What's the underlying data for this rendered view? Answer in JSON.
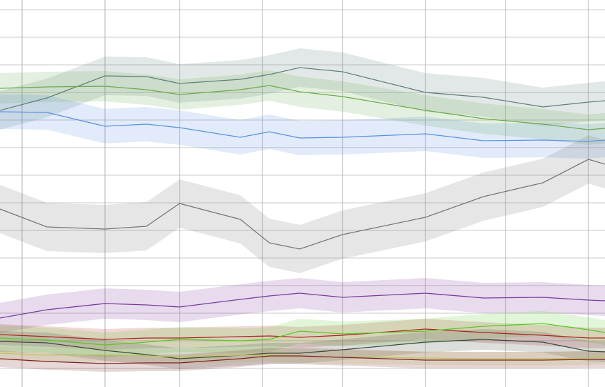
{
  "chart_data": {
    "type": "line",
    "x": [
      0,
      68,
      152,
      212,
      260,
      348,
      390,
      434,
      496,
      616,
      700,
      786,
      852,
      876
    ],
    "xlim": [
      0,
      876
    ],
    "ylim": [
      561,
      0
    ],
    "xticks": [
      32,
      152,
      260,
      380,
      496,
      616,
      732,
      852
    ],
    "yticks": [
      14,
      54,
      94,
      134,
      174,
      214,
      254,
      294,
      334,
      374,
      414,
      454,
      494,
      534
    ],
    "grid": true,
    "series": [
      {
        "color": "#5f7f7a",
        "band": 28,
        "values": [
          160,
          142,
          110,
          111,
          121,
          115,
          108,
          98,
          104,
          134,
          141,
          155,
          148,
          146
        ]
      },
      {
        "color": "#6aaa4f",
        "band": 22,
        "values": [
          128,
          126,
          125,
          130,
          137,
          130,
          124,
          133,
          140,
          160,
          172,
          180,
          188,
          186
        ]
      },
      {
        "color": "#5b8fe0",
        "band": 25,
        "values": [
          162,
          163,
          183,
          180,
          185,
          199,
          191,
          200,
          199,
          194,
          204,
          203,
          205,
          203
        ]
      },
      {
        "color": "#777777",
        "band": 35,
        "values": [
          303,
          329,
          332,
          328,
          295,
          318,
          352,
          361,
          340,
          315,
          285,
          265,
          231,
          238
        ]
      },
      {
        "color": "#7a3a9a",
        "band": 22,
        "values": [
          461,
          449,
          440,
          442,
          445,
          434,
          429,
          425,
          431,
          425,
          432,
          431,
          435,
          436
        ]
      },
      {
        "color": "#b22020",
        "band": 15,
        "values": [
          485,
          488,
          492,
          490,
          490,
          488,
          487,
          489,
          486,
          477,
          482,
          486,
          490,
          490
        ]
      },
      {
        "color": "#58c828",
        "band": 18,
        "values": [
          490,
          493,
          500,
          496,
          492,
          494,
          492,
          480,
          484,
          480,
          473,
          469,
          478,
          482
        ]
      },
      {
        "color": "#3c4a3c",
        "band": 15,
        "values": [
          495,
          497,
          508,
          514,
          520,
          515,
          512,
          512,
          507,
          496,
          492,
          496,
          509,
          510
        ]
      },
      {
        "color": "#b8c85a",
        "band": 10,
        "values": [
          512,
          515,
          514,
          516,
          517,
          515,
          514,
          516,
          518,
          519,
          520,
          520,
          519,
          518
        ]
      },
      {
        "color": "#7a2020",
        "band": 12,
        "values": [
          520,
          524,
          527,
          526,
          526,
          520,
          516,
          516,
          518,
          522,
          522,
          522,
          521,
          521
        ]
      }
    ]
  }
}
